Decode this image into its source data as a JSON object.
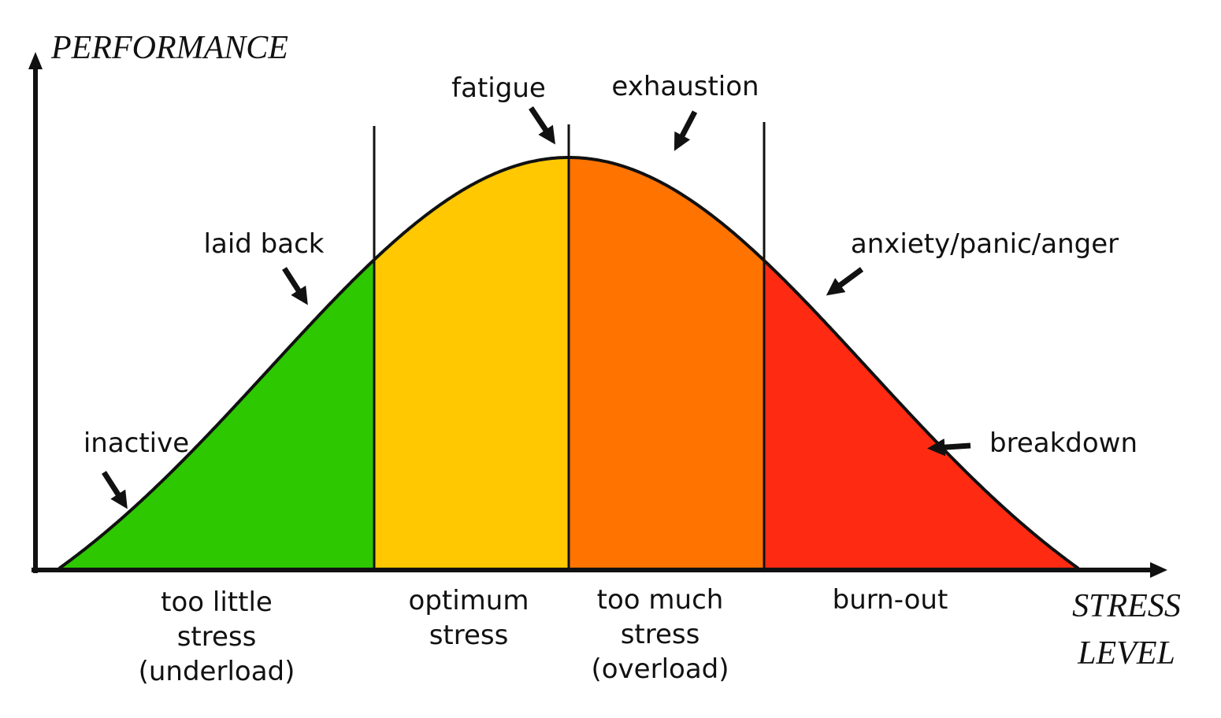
{
  "axes": {
    "y_label": "PERFORMANCE",
    "x_label": [
      "STRESS",
      "LEVEL"
    ]
  },
  "annotations": [
    "fatigue",
    "exhaustion",
    "laid back",
    "anxiety/panic/anger",
    "inactive",
    "breakdown"
  ],
  "zones": [
    {
      "lines": [
        "too little",
        "stress",
        "(underload)"
      ]
    },
    {
      "lines": [
        "optimum",
        "stress"
      ]
    },
    {
      "lines": [
        "too much",
        "stress",
        "(overload)"
      ]
    },
    {
      "lines": [
        "burn-out"
      ]
    }
  ]
}
